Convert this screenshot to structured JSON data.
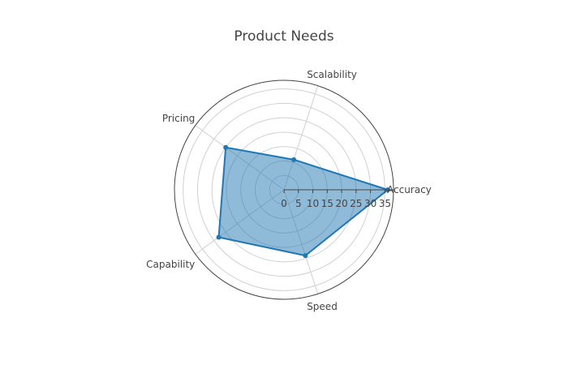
{
  "chart_data": {
    "type": "radar",
    "title": "Product Needs",
    "categories": [
      "Accuracy",
      "Scalability",
      "Pricing",
      "Capability",
      "Speed"
    ],
    "series": [
      {
        "values": [
          36,
          11,
          25,
          28,
          24
        ],
        "color": "#1f77b4",
        "fill": "#1f77b4",
        "fill_opacity": 0.5
      }
    ],
    "radial_ticks": [
      0,
      5,
      10,
      15,
      20,
      25,
      30,
      35
    ],
    "range": [
      0,
      38
    ],
    "grid": true,
    "legend": false
  }
}
